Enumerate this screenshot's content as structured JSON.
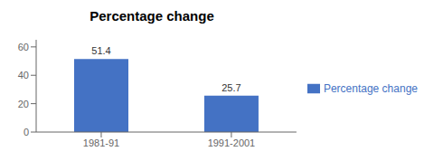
{
  "chart_data": {
    "type": "bar",
    "title": "Percentage change",
    "categories": [
      "1981-91",
      "1991-2001"
    ],
    "series": [
      {
        "name": "Percentage change",
        "color": "#4472C4",
        "values": [
          51.4,
          25.7
        ]
      }
    ],
    "ylim": [
      0,
      65
    ],
    "yticks": [
      0,
      20,
      40,
      60
    ],
    "grid": false,
    "legend": "right",
    "data_labels": true
  }
}
